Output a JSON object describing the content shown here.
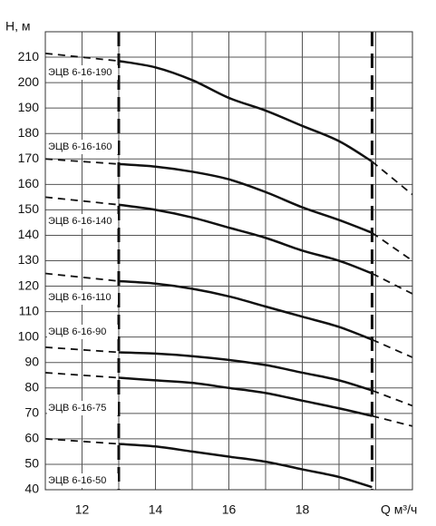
{
  "chart_data": {
    "type": "line",
    "y_label": "H, м",
    "x_label": "Q м³/ч",
    "xlim": [
      11,
      21
    ],
    "ylim": [
      40,
      220
    ],
    "xticks": [
      12,
      14,
      16,
      18
    ],
    "xgrid": [
      11,
      12,
      13,
      14,
      15,
      16,
      17,
      18,
      19,
      20,
      21
    ],
    "yticks": [
      40,
      50,
      60,
      70,
      80,
      90,
      100,
      110,
      120,
      130,
      140,
      150,
      160,
      170,
      180,
      190,
      200,
      210
    ],
    "grid": true,
    "operating_range": [
      13,
      19.9
    ],
    "color": "#111111",
    "x": [
      11,
      13,
      14,
      15,
      16,
      17,
      18,
      19,
      19.9,
      21
    ],
    "series": [
      {
        "name": "ЭЦВ 6-16-190",
        "values": [
          211.5,
          208.5,
          206,
          201,
          194,
          189,
          183,
          177,
          169,
          156
        ]
      },
      {
        "name": "ЭЦВ 6-16-160",
        "values": [
          170,
          168,
          167,
          165,
          162,
          157,
          151,
          146,
          141,
          130
        ]
      },
      {
        "name": "ЭЦВ 6-16-140",
        "values": [
          155,
          152,
          150,
          147,
          143,
          139,
          134,
          130,
          125,
          117
        ]
      },
      {
        "name": "ЭЦВ 6-16-110",
        "values": [
          125,
          122,
          121,
          119,
          116,
          112,
          108,
          104,
          99,
          92
        ]
      },
      {
        "name": "ЭЦВ 6-16-90",
        "values": [
          96,
          94,
          93.5,
          92.5,
          91,
          89,
          86,
          83,
          79,
          73
        ]
      },
      {
        "name": "ЭЦВ 6-16-75",
        "values": [
          86,
          84,
          83,
          82,
          80,
          78,
          75,
          72,
          69,
          65
        ]
      },
      {
        "name": "ЭЦВ 6-16-50",
        "values": [
          60,
          58,
          57,
          55,
          53,
          51,
          48,
          45,
          41,
          null
        ]
      }
    ]
  }
}
